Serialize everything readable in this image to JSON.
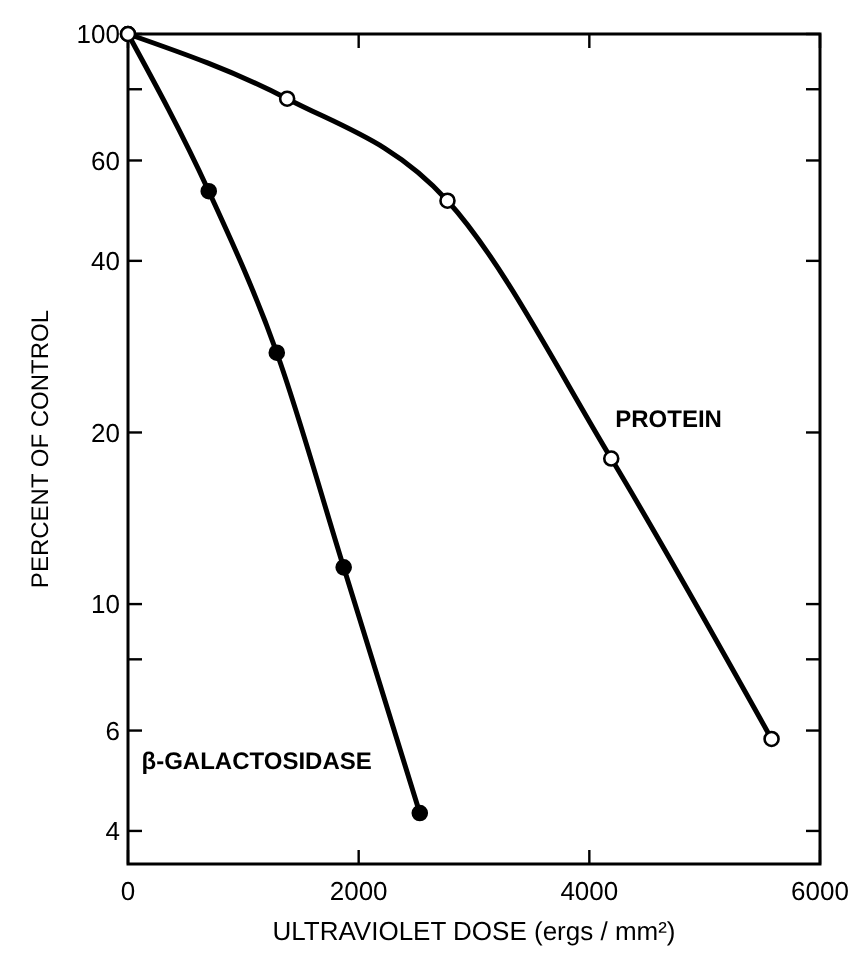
{
  "chart_data": {
    "type": "line",
    "xlabel": "ULTRAVIOLET DOSE (ergs / mm²)",
    "ylabel": "PERCENT OF CONTROL",
    "log": "y",
    "xlim": [
      0,
      6000
    ],
    "ylim": [
      3.5,
      100
    ],
    "xticks": [
      0,
      2000,
      4000,
      6000
    ],
    "yticks": [
      4,
      6,
      {
        "value": 8,
        "label": null
      },
      10,
      20,
      40,
      60,
      {
        "value": 80,
        "label": null
      },
      100
    ],
    "grid": false,
    "marker": "circle",
    "series": [
      {
        "name": "β-GALACTOSIDASE",
        "color": "#000000",
        "x": [
          0,
          700,
          1290,
          1870,
          2530
        ],
        "values": [
          100,
          53,
          27.6,
          11.6,
          4.3
        ]
      },
      {
        "name": "PROTEIN",
        "color": "#000000",
        "x": [
          0,
          1380,
          2770,
          4190,
          5580
        ],
        "values": [
          100,
          77,
          51,
          18,
          5.8
        ]
      }
    ]
  }
}
